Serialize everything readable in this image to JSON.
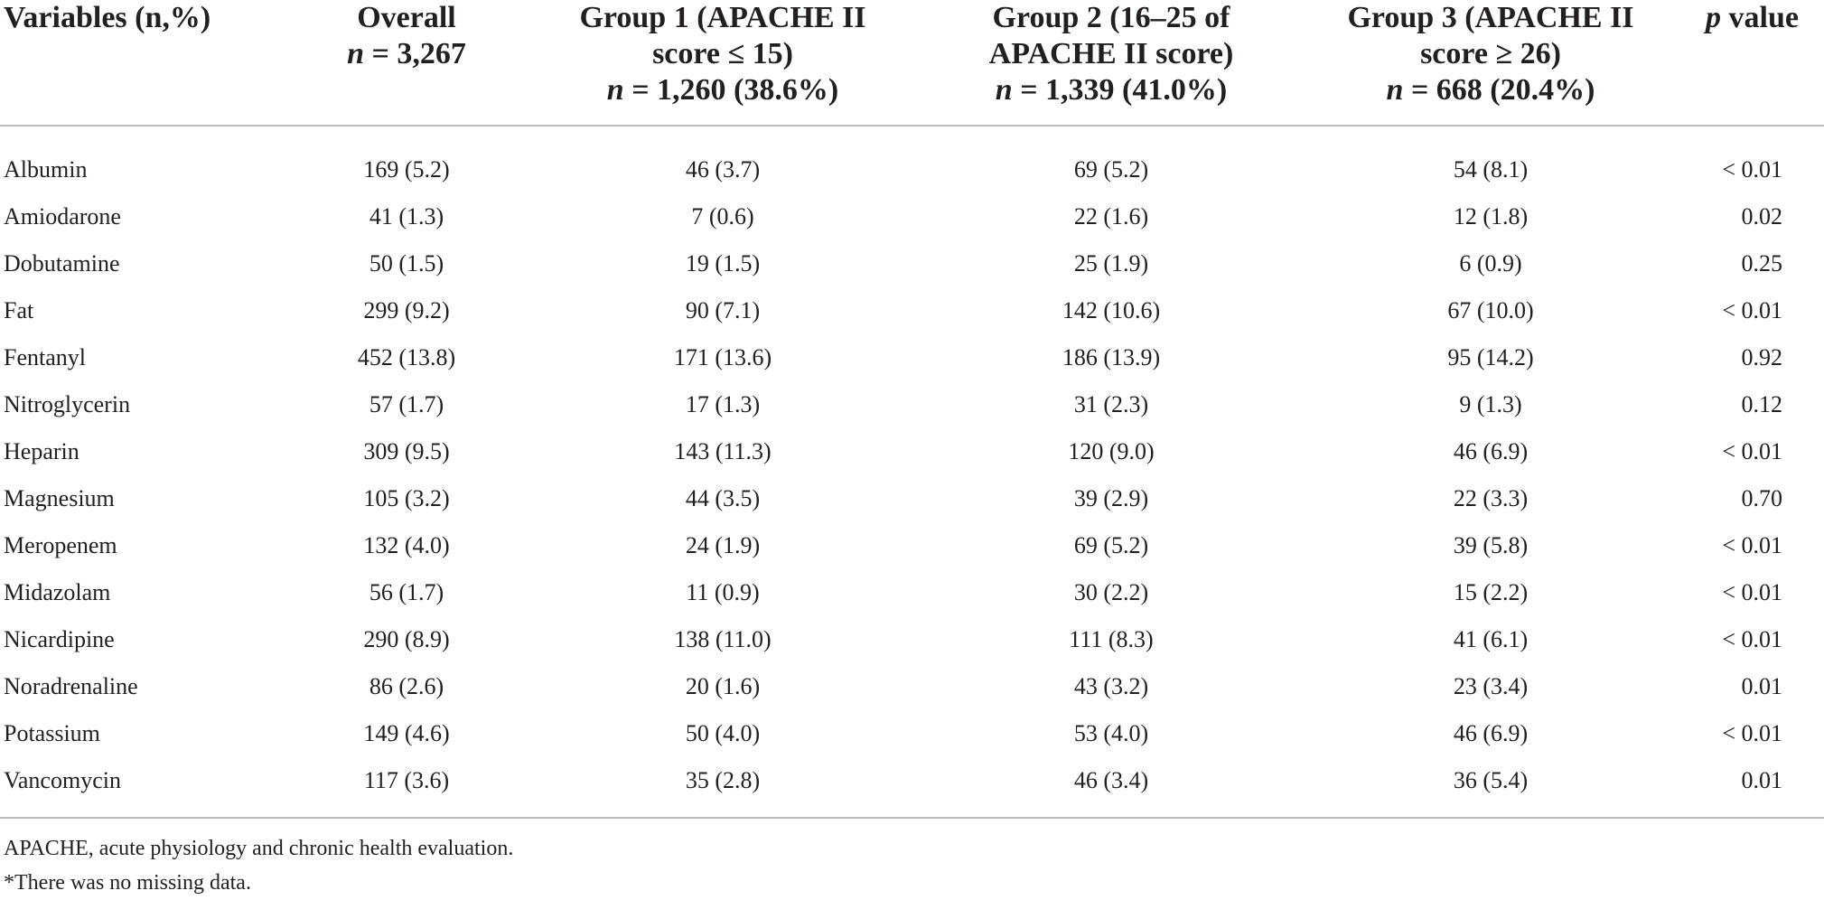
{
  "table": {
    "headers": [
      {
        "lines": [
          {
            "text": "Variables (n,%)"
          }
        ]
      },
      {
        "lines": [
          {
            "text": "Overall"
          },
          {
            "pre": "n",
            "text": " = 3,267"
          }
        ]
      },
      {
        "lines": [
          {
            "text": "Group 1 (APACHE II"
          },
          {
            "text": "score ≤ 15)"
          },
          {
            "pre": "n",
            "text": " = 1,260 (38.6%)"
          }
        ]
      },
      {
        "lines": [
          {
            "text": "Group 2 (16–25 of"
          },
          {
            "text": "APACHE II score)"
          },
          {
            "pre": "n",
            "text": " = 1,339 (41.0%)"
          }
        ]
      },
      {
        "lines": [
          {
            "text": "Group 3 (APACHE II"
          },
          {
            "text": "score ≥ 26)"
          },
          {
            "pre": "n",
            "text": " = 668 (20.4%)"
          }
        ]
      },
      {
        "lines": [
          {
            "pre": "p",
            "text": " value"
          }
        ]
      }
    ],
    "rows": [
      [
        "Albumin",
        "169 (5.2)",
        "46 (3.7)",
        "69 (5.2)",
        "54 (8.1)",
        "< 0.01"
      ],
      [
        "Amiodarone",
        "41 (1.3)",
        "7 (0.6)",
        "22 (1.6)",
        "12 (1.8)",
        "0.02"
      ],
      [
        "Dobutamine",
        "50 (1.5)",
        "19 (1.5)",
        "25 (1.9)",
        "6 (0.9)",
        "0.25"
      ],
      [
        "Fat",
        "299 (9.2)",
        "90 (7.1)",
        "142 (10.6)",
        "67 (10.0)",
        "< 0.01"
      ],
      [
        "Fentanyl",
        "452 (13.8)",
        "171 (13.6)",
        "186 (13.9)",
        "95 (14.2)",
        "0.92"
      ],
      [
        "Nitroglycerin",
        "57 (1.7)",
        "17 (1.3)",
        "31 (2.3)",
        "9 (1.3)",
        "0.12"
      ],
      [
        "Heparin",
        "309 (9.5)",
        "143 (11.3)",
        "120 (9.0)",
        "46 (6.9)",
        "< 0.01"
      ],
      [
        "Magnesium",
        "105 (3.2)",
        "44 (3.5)",
        "39 (2.9)",
        "22 (3.3)",
        "0.70"
      ],
      [
        "Meropenem",
        "132 (4.0)",
        "24 (1.9)",
        "69 (5.2)",
        "39 (5.8)",
        "< 0.01"
      ],
      [
        "Midazolam",
        "56 (1.7)",
        "11 (0.9)",
        "30 (2.2)",
        "15 (2.2)",
        "< 0.01"
      ],
      [
        "Nicardipine",
        "290 (8.9)",
        "138 (11.0)",
        "111 (8.3)",
        "41 (6.1)",
        "< 0.01"
      ],
      [
        "Noradrenaline",
        "86 (2.6)",
        "20 (1.6)",
        "43 (3.2)",
        "23 (3.4)",
        "0.01"
      ],
      [
        "Potassium",
        "149 (4.6)",
        "50 (4.0)",
        "53 (4.0)",
        "46 (6.9)",
        "< 0.01"
      ],
      [
        "Vancomycin",
        "117 (3.6)",
        "35 (2.8)",
        "46 (3.4)",
        "36 (5.4)",
        "0.01"
      ]
    ]
  },
  "footnotes": [
    "APACHE, acute physiology and chronic health evaluation.",
    "*There was no missing data."
  ]
}
